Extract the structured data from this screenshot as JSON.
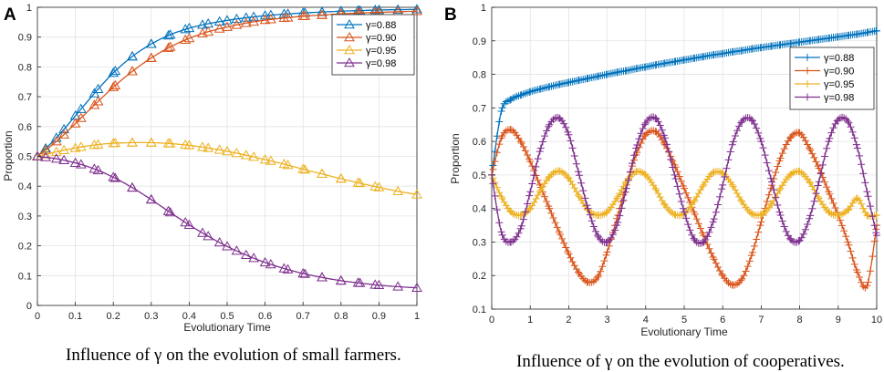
{
  "chart_data": [
    {
      "type": "line",
      "panel": "A",
      "caption": "Influence of γ on the evolution of small farmers.",
      "xlabel": "Evolutionary Time",
      "ylabel": "Proportion",
      "xlim": [
        0,
        1
      ],
      "ylim": [
        0,
        1
      ],
      "xticks": [
        "0",
        "0.1",
        "0.2",
        "0.3",
        "0.4",
        "0.5",
        "0.6",
        "0.7",
        "0.8",
        "0.9",
        "1"
      ],
      "yticks": [
        "0",
        "0.1",
        "0.2",
        "0.3",
        "0.4",
        "0.5",
        "0.6",
        "0.7",
        "0.8",
        "0.9",
        "1"
      ],
      "grid": true,
      "legend_position": "top-right",
      "marker": "triangle",
      "x": [
        0,
        0.05,
        0.1,
        0.15,
        0.2,
        0.25,
        0.3,
        0.35,
        0.4,
        0.45,
        0.5,
        0.55,
        0.6,
        0.65,
        0.7,
        0.75,
        0.8,
        0.85,
        0.9,
        0.95,
        1
      ],
      "series": [
        {
          "name": "γ=0.88",
          "color": "#0072BD",
          "values": [
            0.5,
            0.562,
            0.636,
            0.711,
            0.78,
            0.835,
            0.877,
            0.908,
            0.93,
            0.945,
            0.956,
            0.965,
            0.972,
            0.977,
            0.981,
            0.984,
            0.987,
            0.989,
            0.991,
            0.992,
            0.993
          ]
        },
        {
          "name": "γ=0.90",
          "color": "#D95319",
          "values": [
            0.5,
            0.55,
            0.61,
            0.672,
            0.732,
            0.785,
            0.83,
            0.867,
            0.896,
            0.918,
            0.934,
            0.947,
            0.957,
            0.964,
            0.97,
            0.974,
            0.978,
            0.981,
            0.983,
            0.985,
            0.987
          ]
        },
        {
          "name": "γ=0.95",
          "color": "#EDB120",
          "values": [
            0.5,
            0.515,
            0.528,
            0.538,
            0.544,
            0.546,
            0.546,
            0.543,
            0.537,
            0.528,
            0.517,
            0.504,
            0.489,
            0.474,
            0.457,
            0.441,
            0.425,
            0.41,
            0.396,
            0.383,
            0.372
          ]
        },
        {
          "name": "γ=0.98",
          "color": "#7E2F8E",
          "values": [
            0.5,
            0.492,
            0.478,
            0.458,
            0.43,
            0.395,
            0.355,
            0.312,
            0.27,
            0.232,
            0.198,
            0.169,
            0.144,
            0.124,
            0.107,
            0.094,
            0.083,
            0.075,
            0.068,
            0.063,
            0.059
          ]
        }
      ]
    },
    {
      "type": "line",
      "panel": "B",
      "caption": "Influence of γ on the evolution of cooperatives.",
      "xlabel": "Evolutionary Time",
      "ylabel": "Proportion",
      "xlim": [
        0,
        10
      ],
      "ylim": [
        0.1,
        1
      ],
      "xticks": [
        "0",
        "1",
        "2",
        "3",
        "4",
        "5",
        "6",
        "7",
        "8",
        "9",
        "10"
      ],
      "yticks": [
        "0.1",
        "0.2",
        "0.3",
        "0.4",
        "0.5",
        "0.6",
        "0.7",
        "0.8",
        "0.9",
        "1"
      ],
      "grid": true,
      "legend_position": "top-right",
      "marker": "plus",
      "x": [
        0,
        0.25,
        0.5,
        0.75,
        1,
        1.25,
        1.5,
        1.75,
        2,
        2.25,
        2.5,
        2.75,
        3,
        3.25,
        3.5,
        3.75,
        4,
        4.25,
        4.5,
        4.75,
        5,
        5.25,
        5.5,
        5.75,
        6,
        6.25,
        6.5,
        6.75,
        7,
        7.25,
        7.5,
        7.75,
        8,
        8.25,
        8.5,
        8.75,
        9,
        9.25,
        9.5,
        9.75,
        10
      ],
      "series": [
        {
          "name": "γ=0.88",
          "color": "#0072BD",
          "values": [
            0.5,
            0.69,
            0.725,
            0.738,
            0.748,
            0.756,
            0.763,
            0.77,
            0.776,
            0.782,
            0.788,
            0.794,
            0.8,
            0.806,
            0.811,
            0.817,
            0.822,
            0.828,
            0.833,
            0.838,
            0.843,
            0.848,
            0.853,
            0.858,
            0.862,
            0.867,
            0.871,
            0.876,
            0.88,
            0.884,
            0.888,
            0.892,
            0.896,
            0.9,
            0.904,
            0.908,
            0.912,
            0.916,
            0.92,
            0.925,
            0.93
          ]
        },
        {
          "name": "γ=0.90",
          "color": "#D95319",
          "values": [
            0.5,
            0.61,
            0.635,
            0.6,
            0.54,
            0.47,
            0.4,
            0.33,
            0.265,
            0.21,
            0.18,
            0.195,
            0.27,
            0.37,
            0.47,
            0.56,
            0.62,
            0.63,
            0.59,
            0.53,
            0.46,
            0.39,
            0.32,
            0.255,
            0.2,
            0.172,
            0.19,
            0.26,
            0.36,
            0.46,
            0.55,
            0.61,
            0.625,
            0.58,
            0.52,
            0.45,
            0.38,
            0.3,
            0.21,
            0.17,
            0.35
          ]
        },
        {
          "name": "γ=0.95",
          "color": "#EDB120",
          "values": [
            0.5,
            0.435,
            0.39,
            0.38,
            0.4,
            0.45,
            0.495,
            0.512,
            0.49,
            0.44,
            0.395,
            0.38,
            0.39,
            0.43,
            0.48,
            0.51,
            0.5,
            0.46,
            0.41,
            0.382,
            0.385,
            0.42,
            0.47,
            0.507,
            0.505,
            0.47,
            0.42,
            0.385,
            0.382,
            0.41,
            0.46,
            0.5,
            0.51,
            0.48,
            0.43,
            0.39,
            0.38,
            0.395,
            0.43,
            0.38,
            0.38
          ]
        },
        {
          "name": "γ=0.98",
          "color": "#7E2F8E",
          "values": [
            0.5,
            0.33,
            0.3,
            0.34,
            0.45,
            0.57,
            0.65,
            0.67,
            0.62,
            0.51,
            0.4,
            0.32,
            0.3,
            0.35,
            0.46,
            0.58,
            0.655,
            0.67,
            0.61,
            0.5,
            0.39,
            0.31,
            0.3,
            0.36,
            0.47,
            0.59,
            0.66,
            0.665,
            0.6,
            0.49,
            0.38,
            0.31,
            0.305,
            0.37,
            0.48,
            0.6,
            0.665,
            0.66,
            0.58,
            0.45,
            0.32
          ]
        }
      ]
    }
  ]
}
